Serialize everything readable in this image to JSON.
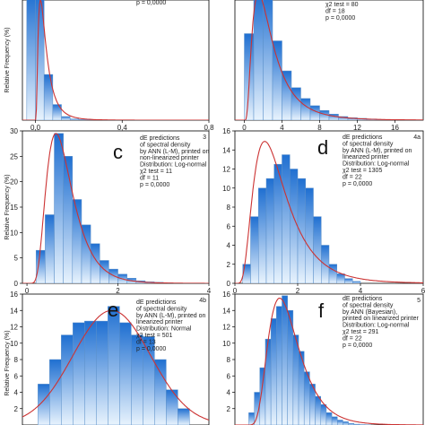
{
  "figure": {
    "background": "#ffffff",
    "bar_gradient_top": "#1f6fd1",
    "bar_gradient_bottom": "#e8f3fd",
    "bar_edge": "#5b8fc9",
    "curve_color": "#cc3333"
  },
  "chart_data": [
    {
      "id": "a",
      "type": "bar",
      "panel_letter": "",
      "panel_number": "",
      "ylabel": "Relative Frequency (%)",
      "annotation_lines": [
        "p = 0,0000"
      ],
      "xlim": [
        -0.06,
        0.8
      ],
      "ylim": [
        0,
        10
      ],
      "x_ticks": [
        0.0,
        0.4,
        0.8
      ],
      "x_tick_labels": [
        "0,0",
        "0,4",
        "0,8"
      ],
      "y_ticks": [],
      "y_tick_labels": [],
      "bin_edges": [
        -0.04,
        0.0,
        0.04,
        0.08,
        0.12,
        0.16,
        0.2,
        0.24,
        0.28,
        0.32,
        0.36,
        0.4,
        0.44,
        0.48,
        0.52,
        0.56,
        0.6,
        0.64,
        0.68,
        0.72,
        0.76,
        0.8
      ],
      "values": [
        10.5,
        10.5,
        3.8,
        1.3,
        0.3,
        0.1,
        0.05,
        0.03,
        0.02,
        0.01,
        0.01,
        0,
        0,
        0,
        0,
        0,
        0,
        0,
        0,
        0,
        0
      ],
      "curve": {
        "kind": "lognormal",
        "mu": -3.2,
        "sigma": 0.75,
        "amp": 10
      }
    },
    {
      "id": "b",
      "type": "bar",
      "panel_letter": "",
      "panel_number": "",
      "ylabel": "",
      "annotation_lines": [
        "χ2 test = 80",
        "df = 18",
        "p = 0,0000"
      ],
      "xlim": [
        -1,
        19
      ],
      "ylim": [
        0,
        10
      ],
      "x_ticks": [
        0,
        4,
        8,
        12,
        16
      ],
      "x_tick_labels": [
        "0",
        "4",
        "8",
        "12",
        "16"
      ],
      "y_ticks": [],
      "y_tick_labels": [],
      "bin_edges": [
        0,
        1,
        2,
        3,
        4,
        5,
        6,
        7,
        8,
        9,
        10,
        11,
        12,
        13,
        14,
        15,
        16,
        17,
        18,
        19
      ],
      "values": [
        7.2,
        10.6,
        10.6,
        6.6,
        4.1,
        2.7,
        1.8,
        1.2,
        0.8,
        0.5,
        0.3,
        0.2,
        0.15,
        0.1,
        0.05,
        0.05,
        0.02,
        0.02,
        0.01
      ],
      "curve": {
        "kind": "lognormal",
        "mu": 0.9,
        "sigma": 0.7,
        "amp": 10.5
      }
    },
    {
      "id": "c",
      "type": "bar",
      "panel_letter": "c",
      "panel_number": "3",
      "ylabel": "Relative Frequency (%)",
      "annotation_lines": [
        "dE predictions",
        "of spectral density",
        "by ANN (L-M), printed on",
        "non-linearized printer",
        "Distribution: Log-normal",
        "χ2 test = 11",
        "df = 11",
        "p = 0,0000"
      ],
      "xlim": [
        -0.1,
        4.0
      ],
      "ylim": [
        0,
        30
      ],
      "x_ticks": [
        0,
        2,
        4
      ],
      "x_tick_labels": [
        "0",
        "2",
        "4"
      ],
      "y_ticks": [
        0,
        5,
        10,
        15,
        20,
        25,
        30
      ],
      "y_tick_labels": [
        "0",
        "5",
        "10",
        "15",
        "20",
        "25",
        "30"
      ],
      "bin_edges": [
        0.2,
        0.4,
        0.6,
        0.8,
        1.0,
        1.2,
        1.4,
        1.6,
        1.8,
        2.0,
        2.2,
        2.4,
        2.6,
        2.8,
        3.0,
        3.2,
        3.4,
        3.6,
        3.8
      ],
      "values": [
        6.5,
        13.5,
        29.5,
        25.0,
        16.5,
        11.5,
        7.8,
        4.5,
        2.8,
        1.8,
        1.0,
        0.5,
        0.3,
        0.2,
        0.1,
        0.05,
        0.03,
        0.02
      ],
      "curve": {
        "kind": "lognormal",
        "mu": -0.25,
        "sigma": 0.45,
        "amp": 29.5
      }
    },
    {
      "id": "d",
      "type": "bar",
      "panel_letter": "d",
      "panel_number": "4a",
      "ylabel": "",
      "annotation_lines": [
        "dE predictions",
        "of spectral density",
        "by ANN (L-M), printed on",
        "linearized printer",
        "Distribution: Log-normal",
        "χ2 test = 1305",
        "df = 22",
        "p = 0,0000"
      ],
      "xlim": [
        0,
        6
      ],
      "ylim": [
        0,
        16
      ],
      "x_ticks": [
        0,
        2,
        4,
        6
      ],
      "x_tick_labels": [
        "0",
        "2",
        "4",
        "6"
      ],
      "y_ticks": [
        0,
        2,
        4,
        6,
        8,
        10,
        12,
        14,
        16
      ],
      "y_tick_labels": [
        "0",
        "2",
        "4",
        "6",
        "8",
        "10",
        "12",
        "14",
        "16"
      ],
      "bin_edges": [
        0.25,
        0.5,
        0.75,
        1.0,
        1.25,
        1.5,
        1.75,
        2.0,
        2.25,
        2.5,
        2.75,
        3.0,
        3.25,
        3.5,
        3.75,
        4.0
      ],
      "values": [
        2.0,
        7.0,
        10.0,
        11.0,
        12.5,
        13.5,
        12.0,
        11.0,
        10.0,
        7.0,
        4.0,
        2.0,
        1.0,
        0.5,
        0.2
      ],
      "curve": {
        "kind": "lognormal",
        "mu": 0.25,
        "sigma": 0.55,
        "amp": 14.9
      }
    },
    {
      "id": "e",
      "type": "bar",
      "panel_letter": "e",
      "panel_number": "4b",
      "ylabel": "Relative Frequency (%)",
      "annotation_lines": [
        "dE predictions",
        "of spectral density",
        "by ANN (L-M), printed on",
        "linearized printer",
        "Distribution: Normal",
        "χ2 test = 501",
        "df = 13",
        "p = 0,0000"
      ],
      "xlim": [
        -0.4,
        4.4
      ],
      "ylim": [
        0,
        16
      ],
      "x_ticks": [],
      "x_tick_labels": [],
      "y_ticks": [
        0,
        2,
        4,
        6,
        8,
        10,
        12,
        14,
        16
      ],
      "y_tick_labels": [
        "0",
        "2",
        "4",
        "6",
        "8",
        "10",
        "12",
        "14",
        "16"
      ],
      "bin_edges": [
        0.0,
        0.3,
        0.6,
        0.9,
        1.2,
        1.5,
        1.8,
        2.1,
        2.4,
        2.7,
        3.0,
        3.3,
        3.6,
        3.9
      ],
      "values": [
        5.0,
        8.0,
        11.0,
        12.5,
        12.7,
        12.7,
        14.5,
        12.5,
        11.0,
        10.8,
        8.0,
        4.3,
        2.0
      ],
      "curve": {
        "kind": "normal",
        "mean": 1.9,
        "sd": 1.0,
        "amp": 14.0
      }
    },
    {
      "id": "f",
      "type": "bar",
      "panel_letter": "f",
      "panel_number": "5",
      "ylabel": "",
      "annotation_lines": [
        "dE predictions",
        "of spectral density",
        "by ANN (Bayesian),",
        "printed on linearized printer",
        "Distribution: Log-normal",
        "χ2 test = 291",
        "df = 22",
        "p = 0,0000"
      ],
      "xlim": [
        -0.3,
        6.5
      ],
      "ylim": [
        0,
        16
      ],
      "x_ticks": [],
      "x_tick_labels": [],
      "y_ticks": [
        0,
        2,
        4,
        6,
        8,
        10,
        12,
        14,
        16
      ],
      "y_tick_labels": [
        "0",
        "2",
        "4",
        "6",
        "8",
        "10",
        "12",
        "14",
        "16"
      ],
      "bin_edges": [
        0.2,
        0.4,
        0.6,
        0.8,
        1.0,
        1.2,
        1.4,
        1.6,
        1.8,
        2.0,
        2.2,
        2.4,
        2.6,
        2.8,
        3.0,
        3.2,
        3.4,
        3.6,
        3.8,
        4.0,
        4.2,
        4.4,
        4.6
      ],
      "values": [
        1.5,
        4.0,
        7.0,
        10.5,
        13.0,
        14.5,
        15.8,
        14.0,
        11.0,
        9.0,
        6.5,
        5.0,
        3.5,
        2.5,
        1.5,
        1.0,
        0.6,
        0.4,
        0.2,
        0.1,
        0.05,
        0.03
      ],
      "curve": {
        "kind": "lognormal",
        "mu": 0.45,
        "sigma": 0.42,
        "amp": 15.5
      }
    }
  ]
}
